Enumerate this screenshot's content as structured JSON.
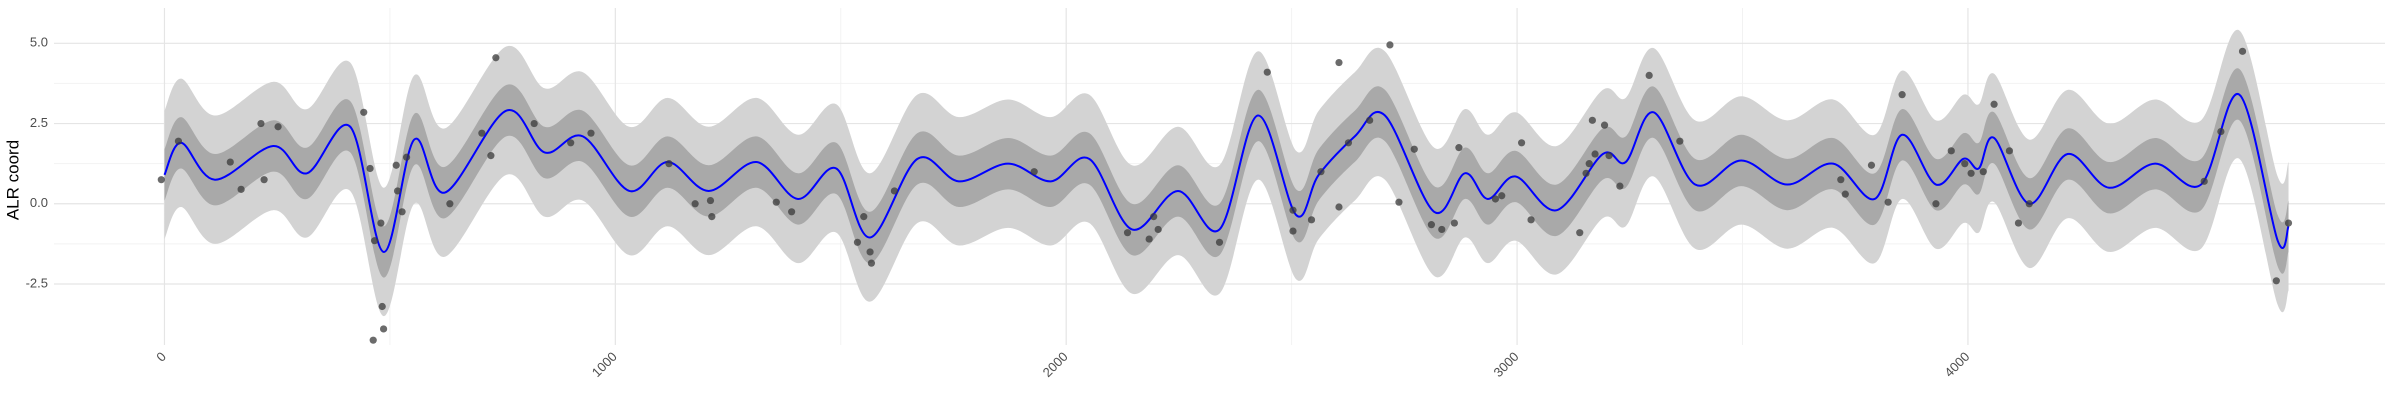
{
  "chart_data": {
    "type": "line",
    "y_label": "ALR coord",
    "xlim": [
      -245,
      4925
    ],
    "ylim": [
      -4.4,
      6.1
    ],
    "xticks": [
      0,
      1000,
      2000,
      3000,
      4000
    ],
    "yticks": [
      -2.5,
      {
        "value": 0,
        "label": "0.0"
      },
      2.5,
      {
        "value": 5,
        "label": "5.0"
      }
    ],
    "grid": true,
    "x": [
      0,
      37,
      112,
      241,
      316,
      412,
      486,
      554,
      622,
      758,
      843,
      928,
      1031,
      1116,
      1207,
      1313,
      1405,
      1490,
      1565,
      1670,
      1762,
      1871,
      1966,
      2051,
      2146,
      2248,
      2340,
      2425,
      2510,
      2560,
      2640,
      2707,
      2816,
      2884,
      2935,
      2997,
      3088,
      3190,
      3241,
      3303,
      3395,
      3497,
      3599,
      3701,
      3793,
      3854,
      3929,
      3990,
      4024,
      4058,
      4136,
      4221,
      4313,
      4415,
      4517,
      4602,
      4687,
      4711
    ],
    "bands": [
      {
        "color": "#d3d3d3",
        "lower": [
          -1.1,
          -0.1,
          -1.25,
          -0.2,
          -1.05,
          0.4,
          -3.5,
          0.0,
          -1.65,
          0.9,
          -0.4,
          0.1,
          -1.6,
          -0.7,
          -1.6,
          -0.7,
          -1.85,
          -0.9,
          -3.05,
          -0.6,
          -1.3,
          -0.75,
          -1.3,
          -0.6,
          -2.8,
          -1.6,
          -2.8,
          0.75,
          -2.35,
          -1.1,
          0.1,
          0.75,
          -2.25,
          -1.05,
          -1.85,
          -1.15,
          -2.2,
          -0.45,
          -0.7,
          0.85,
          -1.4,
          -0.65,
          -1.4,
          -0.75,
          -1.85,
          0.15,
          -1.4,
          -0.6,
          -0.9,
          0.05,
          -2.0,
          -0.45,
          -1.5,
          -0.75,
          -1.4,
          1.4,
          -3.15,
          -2.7
        ],
        "upper": [
          2.9,
          3.9,
          2.75,
          3.8,
          2.95,
          4.4,
          0.5,
          4.0,
          2.35,
          4.9,
          3.6,
          4.1,
          2.4,
          3.3,
          2.4,
          3.3,
          2.15,
          3.1,
          0.95,
          3.4,
          2.7,
          3.25,
          2.7,
          3.4,
          1.2,
          2.4,
          1.2,
          4.75,
          1.65,
          2.9,
          4.1,
          4.75,
          1.75,
          2.95,
          2.15,
          2.85,
          1.8,
          3.55,
          3.3,
          4.85,
          2.6,
          3.35,
          2.6,
          3.25,
          2.15,
          4.15,
          2.6,
          3.4,
          3.1,
          4.05,
          2.0,
          3.55,
          2.5,
          3.25,
          2.6,
          5.4,
          0.85,
          1.3
        ]
      },
      {
        "color": "#a9a9a9",
        "lower": [
          0.1,
          1.1,
          -0.05,
          1.0,
          0.15,
          1.6,
          -2.3,
          1.2,
          -0.45,
          2.1,
          0.8,
          1.3,
          -0.4,
          0.5,
          -0.4,
          0.5,
          -0.65,
          0.3,
          -1.85,
          0.6,
          -0.1,
          0.45,
          -0.1,
          0.6,
          -1.6,
          -0.4,
          -1.6,
          1.95,
          -1.15,
          0.1,
          1.3,
          1.95,
          -1.05,
          0.15,
          -0.65,
          0.05,
          -1.0,
          0.75,
          0.5,
          2.05,
          -0.2,
          0.55,
          -0.2,
          0.45,
          -0.65,
          1.35,
          -0.2,
          0.6,
          0.3,
          1.25,
          -0.8,
          0.75,
          -0.3,
          0.45,
          -0.2,
          2.6,
          -1.95,
          -1.5
        ],
        "upper": [
          1.7,
          2.7,
          1.55,
          2.6,
          1.75,
          3.2,
          -0.7,
          2.8,
          1.15,
          3.7,
          2.4,
          2.9,
          1.2,
          2.1,
          1.2,
          2.1,
          0.95,
          1.9,
          -0.25,
          2.2,
          1.5,
          2.05,
          1.5,
          2.2,
          0.0,
          1.2,
          0.0,
          3.55,
          0.45,
          1.7,
          2.9,
          3.55,
          0.55,
          1.75,
          0.95,
          1.65,
          0.6,
          2.35,
          2.1,
          3.65,
          1.4,
          2.15,
          1.4,
          2.05,
          0.95,
          2.95,
          1.4,
          2.2,
          1.9,
          2.85,
          0.8,
          2.35,
          1.3,
          2.05,
          1.4,
          4.2,
          -0.35,
          0.1
        ]
      }
    ],
    "line": {
      "color": "#0000ff",
      "values": [
        0.9,
        1.9,
        0.75,
        1.8,
        0.95,
        2.4,
        -1.5,
        2.0,
        0.35,
        2.9,
        1.6,
        2.1,
        0.4,
        1.3,
        0.4,
        1.3,
        0.15,
        1.1,
        -1.05,
        1.4,
        0.7,
        1.25,
        0.7,
        1.4,
        -0.8,
        0.4,
        -0.8,
        2.75,
        -0.35,
        0.9,
        2.1,
        2.75,
        -0.25,
        0.95,
        0.15,
        0.85,
        -0.2,
        1.55,
        1.3,
        2.85,
        0.6,
        1.35,
        0.6,
        1.25,
        0.15,
        2.15,
        0.6,
        1.4,
        1.1,
        2.05,
        0.0,
        1.55,
        0.5,
        1.25,
        0.6,
        3.4,
        -1.15,
        -0.7
      ]
    },
    "points": {
      "color": "#3a3a3a",
      "x": [
        -7,
        31,
        146,
        170,
        214,
        221,
        252,
        442,
        456,
        466,
        480,
        463,
        483,
        486,
        517,
        514,
        527,
        537,
        633,
        704,
        724,
        735,
        820,
        901,
        946,
        1119,
        1177,
        1211,
        1214,
        1357,
        1391,
        1537,
        1551,
        1565,
        1568,
        1619,
        1929,
        2136,
        2184,
        2194,
        2204,
        2340,
        2446,
        2503,
        2503,
        2544,
        2565,
        2605,
        2605,
        2626,
        2673,
        2718,
        2738,
        2772,
        2810,
        2833,
        2861,
        2871,
        2952,
        2966,
        3010,
        3031,
        3139,
        3153,
        3160,
        3167,
        3173,
        3194,
        3204,
        3228,
        3293,
        3361,
        3718,
        3728,
        3786,
        3823,
        3854,
        3929,
        3963,
        3993,
        4007,
        4034,
        4058,
        4092,
        4112,
        4136,
        4524,
        4561,
        4609,
        4684,
        4711
      ],
      "y": [
        0.75,
        1.95,
        1.3,
        0.45,
        2.5,
        0.75,
        2.4,
        2.85,
        1.1,
        -1.15,
        -0.6,
        -4.25,
        -3.2,
        -3.9,
        0.4,
        1.2,
        -0.25,
        1.45,
        0.0,
        2.2,
        1.5,
        4.55,
        2.5,
        1.9,
        2.2,
        1.25,
        0.0,
        0.1,
        -0.4,
        0.05,
        -0.25,
        -1.2,
        -0.4,
        -1.5,
        -1.85,
        0.4,
        1.0,
        -0.9,
        -1.1,
        -0.4,
        -0.8,
        -1.2,
        4.1,
        -0.2,
        -0.85,
        -0.5,
        1.0,
        4.4,
        -0.1,
        1.9,
        2.6,
        4.95,
        0.05,
        1.7,
        -0.65,
        -0.8,
        -0.6,
        1.75,
        0.15,
        0.25,
        1.9,
        -0.5,
        -0.9,
        0.95,
        1.25,
        2.6,
        1.55,
        2.45,
        1.5,
        0.55,
        4.0,
        1.95,
        0.75,
        0.3,
        1.2,
        0.05,
        3.4,
        0.0,
        1.65,
        1.25,
        0.95,
        1.0,
        3.1,
        1.65,
        -0.6,
        0.0,
        0.7,
        2.25,
        4.75,
        -2.4,
        -0.6
      ]
    }
  }
}
